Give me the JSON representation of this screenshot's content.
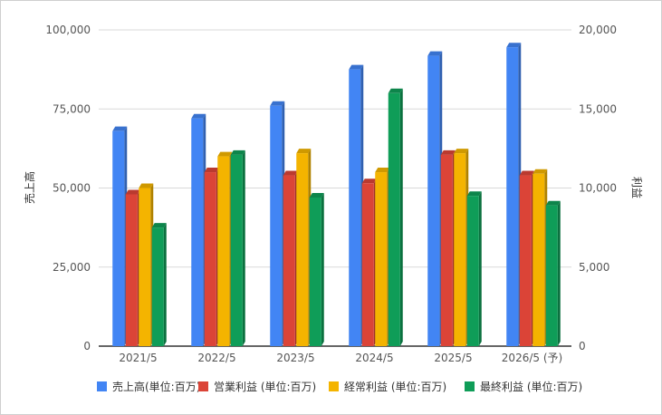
{
  "chart_data": {
    "type": "bar",
    "categories": [
      "2021/5",
      "2022/5",
      "2023/5",
      "2024/5",
      "2025/5",
      "2026/5 (予)"
    ],
    "series": [
      {
        "name": "売上高(単位:百万)",
        "axis": "left",
        "color": "#4285f4",
        "values": [
          68000,
          72000,
          76000,
          87500,
          91800,
          94500
        ]
      },
      {
        "name": "営業利益 (単位:百万)",
        "axis": "right",
        "color": "#db4437",
        "values": [
          9600,
          11000,
          10800,
          10300,
          12100,
          10800
        ]
      },
      {
        "name": "経常利益 (単位:百万)",
        "axis": "right",
        "color": "#f4b400",
        "values": [
          10000,
          12000,
          12200,
          11000,
          12200,
          10900
        ]
      },
      {
        "name": "最終利益 (単位:百万)",
        "axis": "right",
        "color": "#0f9d58",
        "values": [
          7500,
          12100,
          9400,
          16000,
          9500,
          8900
        ]
      }
    ],
    "ylabel": "売上高",
    "y2label": "利益",
    "ylim": [
      0,
      100000
    ],
    "y2lim": [
      0,
      20000
    ],
    "yticks": [
      "0",
      "25,000",
      "50,000",
      "75,000",
      "100,000"
    ],
    "y2ticks": [
      "0",
      "5,000",
      "10,000",
      "15,000",
      "20,000"
    ],
    "grid": true,
    "legend": "bottom"
  }
}
